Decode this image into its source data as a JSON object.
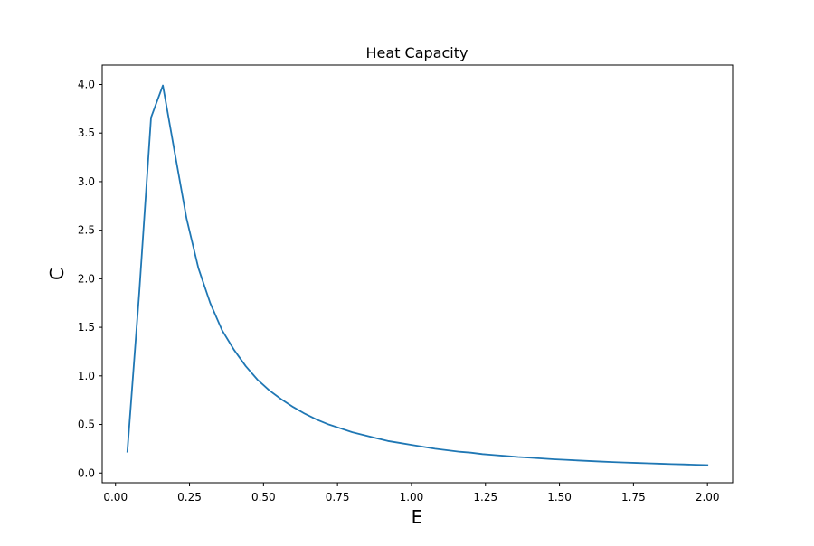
{
  "chart_data": {
    "type": "line",
    "title": "Heat Capacity",
    "xlabel": "E",
    "ylabel": "C",
    "xlim": [
      -0.045,
      2.085
    ],
    "ylim": [
      -0.1,
      4.2
    ],
    "xticks": [
      0.0,
      0.25,
      0.5,
      0.75,
      1.0,
      1.25,
      1.5,
      1.75,
      2.0
    ],
    "xtick_labels": [
      "0.00",
      "0.25",
      "0.50",
      "0.75",
      "1.00",
      "1.25",
      "1.50",
      "1.75",
      "2.00"
    ],
    "yticks": [
      0.0,
      0.5,
      1.0,
      1.5,
      2.0,
      2.5,
      3.0,
      3.5,
      4.0
    ],
    "ytick_labels": [
      "0.0",
      "0.5",
      "1.0",
      "1.5",
      "2.0",
      "2.5",
      "3.0",
      "3.5",
      "4.0"
    ],
    "grid": false,
    "legend": "none",
    "series": [
      {
        "color": "#1f77b4",
        "x": [
          0.04,
          0.08,
          0.12,
          0.16,
          0.2,
          0.24,
          0.28,
          0.32,
          0.36,
          0.4,
          0.44,
          0.48,
          0.52,
          0.56,
          0.6,
          0.64,
          0.68,
          0.72,
          0.76,
          0.8,
          0.84,
          0.88,
          0.92,
          0.96,
          1.0,
          1.04,
          1.08,
          1.12,
          1.16,
          1.2,
          1.24,
          1.28,
          1.32,
          1.36,
          1.4,
          1.44,
          1.48,
          1.52,
          1.56,
          1.6,
          1.64,
          1.68,
          1.72,
          1.76,
          1.8,
          1.84,
          1.88,
          1.92,
          1.96,
          2.0
        ],
        "y": [
          0.22,
          1.85,
          3.66,
          3.99,
          3.3,
          2.62,
          2.11,
          1.75,
          1.47,
          1.27,
          1.1,
          0.96,
          0.85,
          0.76,
          0.68,
          0.61,
          0.55,
          0.5,
          0.46,
          0.42,
          0.39,
          0.36,
          0.33,
          0.31,
          0.29,
          0.27,
          0.25,
          0.235,
          0.22,
          0.21,
          0.195,
          0.185,
          0.175,
          0.165,
          0.158,
          0.15,
          0.142,
          0.136,
          0.13,
          0.124,
          0.118,
          0.113,
          0.108,
          0.104,
          0.1,
          0.096,
          0.092,
          0.089,
          0.085,
          0.081
        ]
      }
    ]
  }
}
